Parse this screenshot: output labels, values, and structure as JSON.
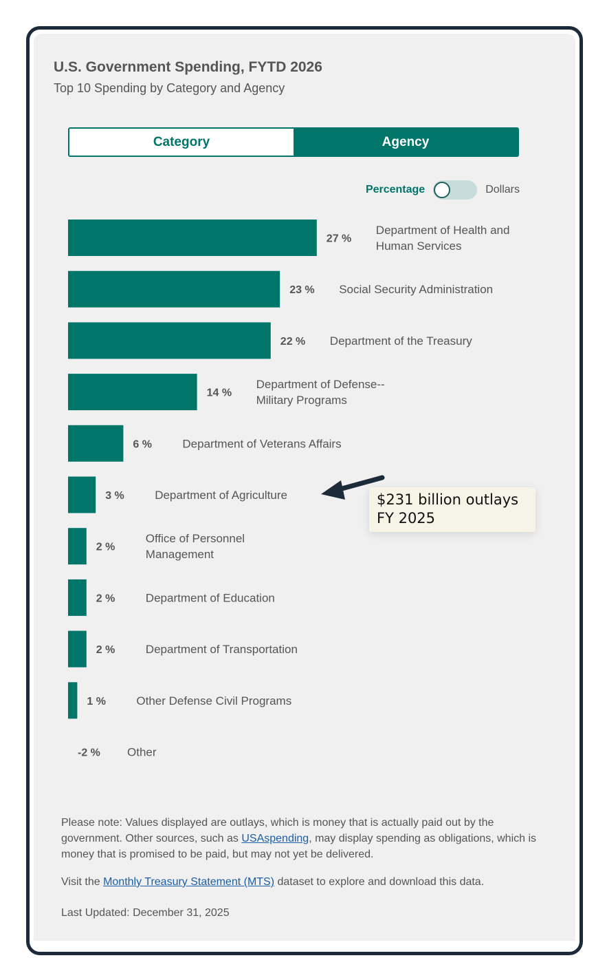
{
  "header": {
    "title": "U.S. Government Spending, FYTD 2026",
    "subtitle": "Top 10 Spending by Category and Agency"
  },
  "tabs": [
    {
      "label": "Category",
      "active": false
    },
    {
      "label": "Agency",
      "active": true
    }
  ],
  "unit_switch": {
    "left_label": "Percentage",
    "right_label": "Dollars",
    "selected": "Percentage"
  },
  "annotation": {
    "line1": "$231 billion outlays",
    "line2": "FY 2025"
  },
  "notes": {
    "note_prefix": "Please note: Values displayed are outlays, which is money that is actually paid out by the government. Other sources, such as ",
    "note_link": "USAspending",
    "note_suffix": ", may display spending as obligations, which is money that is promised to be paid, but may not yet be delivered.",
    "visit_prefix": "Visit the ",
    "visit_link": "Monthly Treasury Statement (MTS)",
    "visit_suffix": " dataset to explore and download this data.",
    "last_updated": "Last Updated: December 31, 2025"
  },
  "colors": {
    "bar": "#00756a",
    "frame": "#1d2a3a",
    "annotation_bg": "#f6f4e6"
  },
  "chart_data": {
    "type": "bar",
    "orientation": "horizontal",
    "unit": "%",
    "categories": [
      [
        "Department of Health and",
        "Human Services"
      ],
      [
        "Social Security Administration"
      ],
      [
        "Department of the Treasury"
      ],
      [
        "Department of Defense--",
        "Military Programs"
      ],
      [
        "Department of Veterans Affairs"
      ],
      [
        "Department of Agriculture"
      ],
      [
        "Office of Personnel",
        "Management"
      ],
      [
        "Department of Education"
      ],
      [
        "Department of Transportation"
      ],
      [
        "Other Defense Civil Programs"
      ],
      [
        "Other"
      ]
    ],
    "values": [
      27,
      23,
      22,
      14,
      6,
      3,
      2,
      2,
      2,
      1,
      -2
    ],
    "value_labels": [
      "27 %",
      "23 %",
      "22 %",
      "14 %",
      "6 %",
      "3 %",
      "2 %",
      "2 %",
      "2 %",
      "1 %",
      "-2 %"
    ]
  }
}
